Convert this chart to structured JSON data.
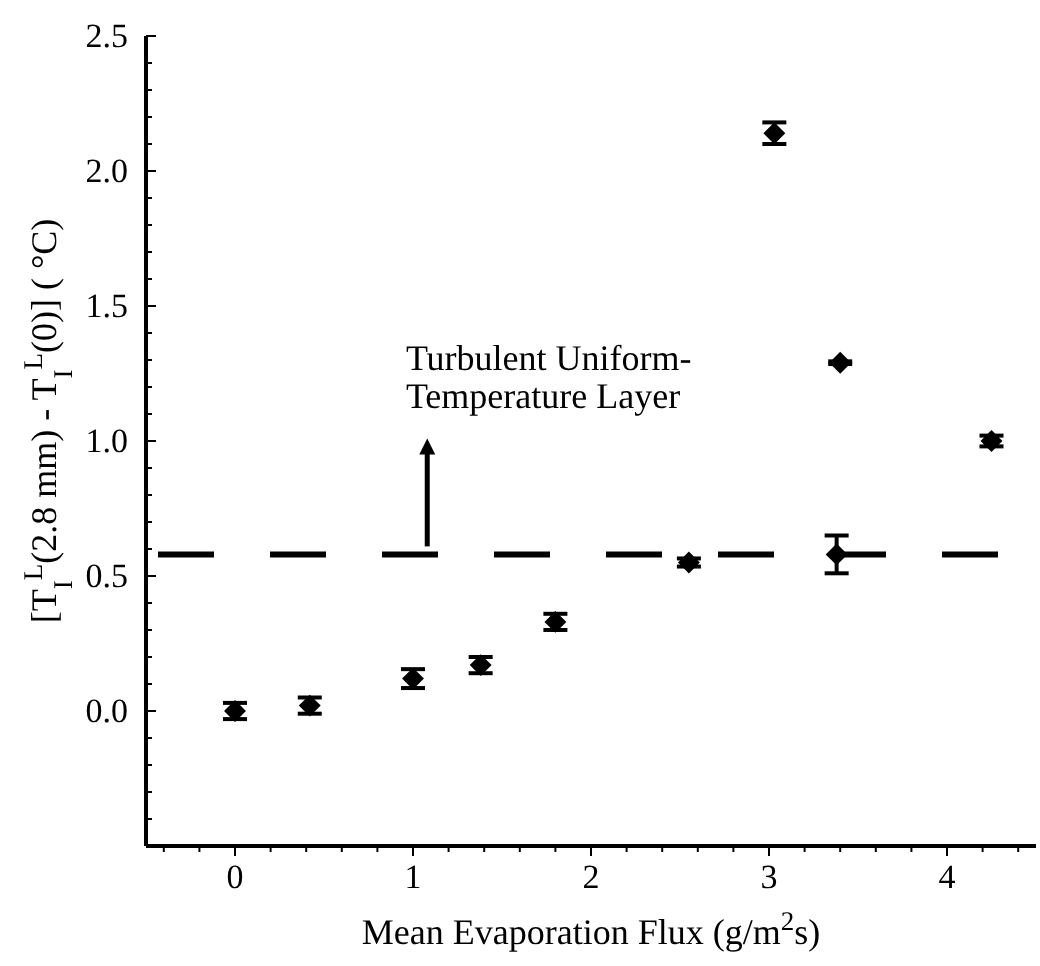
{
  "chart_data": {
    "type": "scatter",
    "xlabel": "Mean Evaporation Flux (g/m$^{2}$s)",
    "ylabel": "[T$_{I}$$^{L}$(2.8 mm) - T$_{I}$$^{L}$(0)] ( °C)",
    "x": [
      0,
      0.42,
      1.0,
      1.38,
      1.8,
      2.55,
      3.03,
      3.4,
      3.38,
      4.25
    ],
    "values": [
      0.0,
      0.02,
      0.12,
      0.17,
      0.33,
      0.55,
      2.14,
      1.29,
      0.58,
      1.0
    ],
    "errors": [
      0.03,
      0.03,
      0.035,
      0.03,
      0.03,
      0.015,
      0.04,
      0.005,
      0.07,
      0.02
    ],
    "color": "#000000",
    "marker": "diamond",
    "xlim": [
      -0.5,
      4.5
    ],
    "ylim": [
      -0.5,
      2.5
    ],
    "xticks": [
      {
        "value": -0.4,
        "label": null
      },
      {
        "value": -0.2,
        "label": null
      },
      0,
      {
        "value": 0.2,
        "label": null
      },
      {
        "value": 0.4,
        "label": null
      },
      {
        "value": 0.6,
        "label": null
      },
      {
        "value": 0.8,
        "label": null
      },
      1,
      {
        "value": 1.2,
        "label": null
      },
      {
        "value": 1.4,
        "label": null
      },
      {
        "value": 1.6,
        "label": null
      },
      {
        "value": 1.8,
        "label": null
      },
      2,
      {
        "value": 2.2,
        "label": null
      },
      {
        "value": 2.4,
        "label": null
      },
      {
        "value": 2.6,
        "label": null
      },
      {
        "value": 2.8,
        "label": null
      },
      3,
      {
        "value": 3.2,
        "label": null
      },
      {
        "value": 3.4,
        "label": null
      },
      {
        "value": 3.6,
        "label": null
      },
      {
        "value": 3.8,
        "label": null
      },
      4,
      {
        "value": 4.2,
        "label": null
      },
      {
        "value": 4.4,
        "label": null
      }
    ],
    "yticks": [
      {
        "value": -0.4,
        "label": null
      },
      {
        "value": -0.3,
        "label": null
      },
      {
        "value": -0.2,
        "label": null
      },
      {
        "value": -0.1,
        "label": null
      },
      {
        "value": 0,
        "label": "0.0"
      },
      {
        "value": 0.1,
        "label": null
      },
      {
        "value": 0.2,
        "label": null
      },
      {
        "value": 0.3,
        "label": null
      },
      {
        "value": 0.4,
        "label": null
      },
      0.5,
      {
        "value": 0.6,
        "label": null
      },
      {
        "value": 0.7,
        "label": null
      },
      {
        "value": 0.8,
        "label": null
      },
      {
        "value": 0.9,
        "label": null
      },
      {
        "value": 1,
        "label": "1.0"
      },
      {
        "value": 1.1,
        "label": null
      },
      {
        "value": 1.2,
        "label": null
      },
      {
        "value": 1.3,
        "label": null
      },
      {
        "value": 1.4,
        "label": null
      },
      1.5,
      {
        "value": 1.6,
        "label": null
      },
      {
        "value": 1.7,
        "label": null
      },
      {
        "value": 1.8,
        "label": null
      },
      {
        "value": 1.9,
        "label": null
      },
      {
        "value": 2,
        "label": "2.0"
      },
      {
        "value": 2.1,
        "label": null
      },
      {
        "value": 2.2,
        "label": null
      },
      {
        "value": 2.3,
        "label": null
      },
      {
        "value": 2.4,
        "label": null
      },
      2.5
    ],
    "grid": false,
    "ref_lines": [
      {
        "axis": "y",
        "value": 0.58,
        "line_style": "dashed",
        "label": "Turbulent Uniform-\nTemperature Layer"
      }
    ]
  }
}
